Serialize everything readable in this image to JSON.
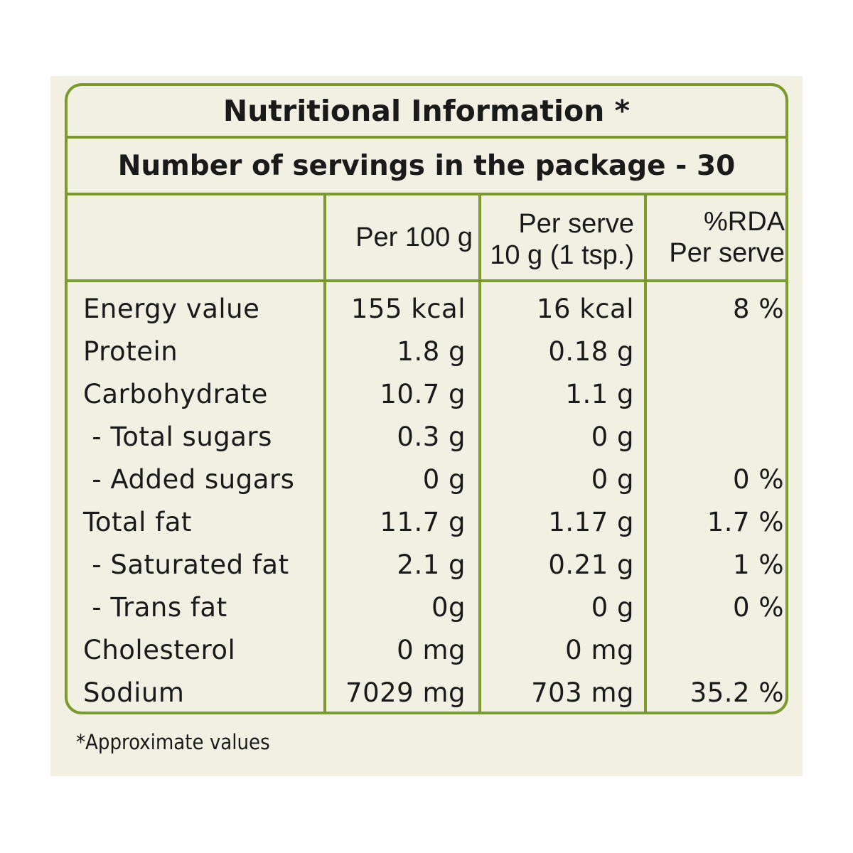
{
  "title": "Nutritional Information *",
  "servings": "Number of servings in the package - 30",
  "columns": {
    "per100": "Per 100 g",
    "serve_line1": "Per serve",
    "serve_line2": "10 g (1 tsp.)",
    "rda_line1": "%RDA",
    "rda_line2": "Per serve"
  },
  "rows": [
    {
      "name": "Energy value",
      "per100": "155 kcal",
      "serve": "16 kcal",
      "rda": "8 %"
    },
    {
      "name": "Protein",
      "per100": "1.8 g",
      "serve": "0.18 g",
      "rda": ""
    },
    {
      "name": "Carbohydrate",
      "per100": "10.7 g",
      "serve": "1.1 g",
      "rda": ""
    },
    {
      "name": " - Total sugars",
      "per100": "0.3 g",
      "serve": "0 g",
      "rda": ""
    },
    {
      "name": " - Added sugars",
      "per100": "0 g",
      "serve": "0 g",
      "rda": "0 %"
    },
    {
      "name": "Total fat",
      "per100": "11.7 g",
      "serve": "1.17 g",
      "rda": "1.7 %"
    },
    {
      "name": " - Saturated fat",
      "per100": "2.1 g",
      "serve": "0.21 g",
      "rda": "1 %"
    },
    {
      "name": " - Trans fat",
      "per100": "0g",
      "serve": "0 g",
      "rda": "0 %"
    },
    {
      "name": "Cholesterol",
      "per100": "0 mg",
      "serve": "0 mg",
      "rda": ""
    },
    {
      "name": "Sodium",
      "per100": "7029 mg",
      "serve": "703 mg",
      "rda": "35.2 %"
    }
  ],
  "footnote": "*Approximate values",
  "colors": {
    "border": "#7a9a2e",
    "background": "#f2efe3",
    "text": "#1a1a1a"
  }
}
